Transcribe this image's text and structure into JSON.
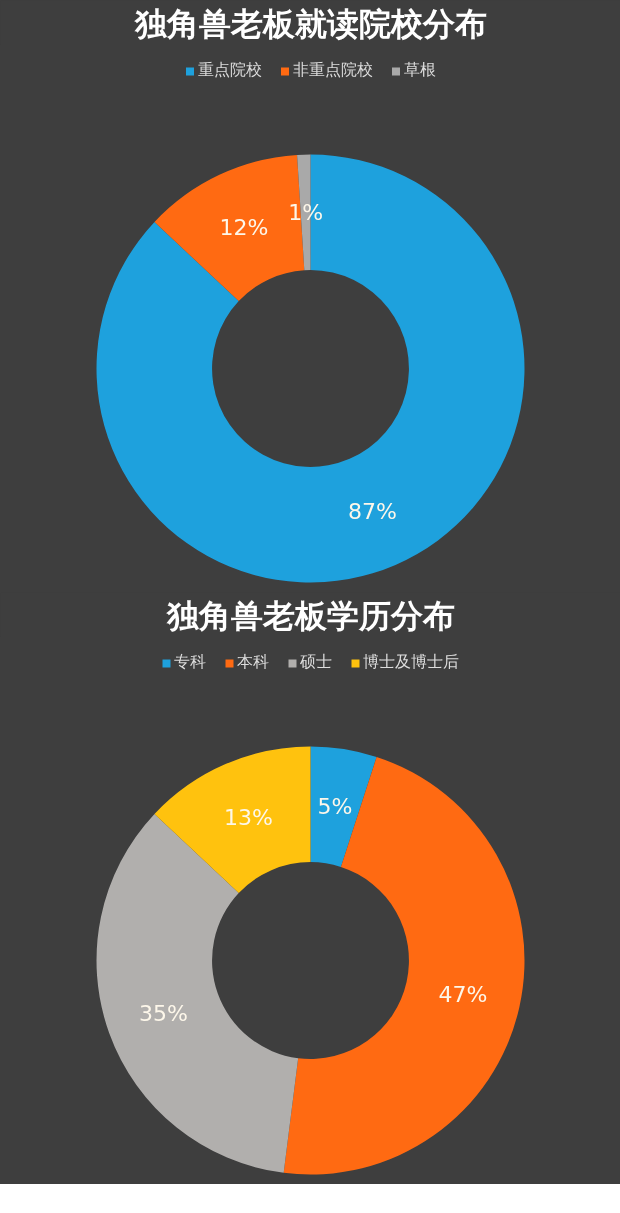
{
  "chart_data": [
    {
      "type": "donut",
      "title": "独角兽老板就读院校分布",
      "categories": [
        "重点院校",
        "非重点院校",
        "草根"
      ],
      "values": [
        87,
        12,
        1
      ],
      "colors": [
        "#1ea1dd",
        "#ff6a12",
        "#a9a9a9"
      ],
      "value_labels": [
        "87%",
        "12%",
        "1%"
      ],
      "legend": "top"
    },
    {
      "type": "donut",
      "title": "独角兽老板学历分布",
      "categories": [
        "专科",
        "本科",
        "硕士",
        "博士及博士后"
      ],
      "values": [
        5,
        47,
        35,
        13
      ],
      "colors": [
        "#1ea1dd",
        "#ff6a12",
        "#b1afad",
        "#ffc20e"
      ],
      "value_labels": [
        "5%",
        "47%",
        "35%",
        "13%"
      ],
      "legend": "top"
    }
  ]
}
